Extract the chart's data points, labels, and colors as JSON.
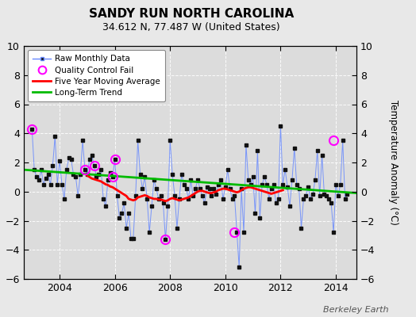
{
  "title": "SANDY RUN NORTH CAROLINA",
  "subtitle": "34.612 N, 77.487 W (United States)",
  "ylabel": "Temperature Anomaly (°C)",
  "watermark": "Berkeley Earth",
  "xlim": [
    2002.7,
    2014.75
  ],
  "ylim": [
    -6,
    10
  ],
  "yticks": [
    -6,
    -4,
    -2,
    0,
    2,
    4,
    6,
    8,
    10
  ],
  "xticks": [
    2004,
    2006,
    2008,
    2010,
    2012,
    2014
  ],
  "bg_color": "#e8e8e8",
  "plot_bg_color": "#dcdcdc",
  "grid_color": "#ffffff",
  "raw_line_color": "#6688ff",
  "raw_marker_color": "#111111",
  "moving_avg_color": "#ff0000",
  "trend_color": "#00bb00",
  "qc_fail_color": "#ff00ff",
  "raw_x": [
    2003.0,
    2003.083,
    2003.167,
    2003.25,
    2003.333,
    2003.417,
    2003.5,
    2003.583,
    2003.667,
    2003.75,
    2003.833,
    2003.917,
    2004.0,
    2004.083,
    2004.167,
    2004.25,
    2004.333,
    2004.417,
    2004.5,
    2004.583,
    2004.667,
    2004.75,
    2004.833,
    2004.917,
    2005.0,
    2005.083,
    2005.167,
    2005.25,
    2005.333,
    2005.417,
    2005.5,
    2005.583,
    2005.667,
    2005.75,
    2005.833,
    2005.917,
    2006.0,
    2006.083,
    2006.167,
    2006.25,
    2006.333,
    2006.417,
    2006.5,
    2006.583,
    2006.667,
    2006.75,
    2006.833,
    2006.917,
    2007.0,
    2007.083,
    2007.167,
    2007.25,
    2007.333,
    2007.417,
    2007.5,
    2007.583,
    2007.667,
    2007.75,
    2007.833,
    2007.917,
    2008.0,
    2008.083,
    2008.167,
    2008.25,
    2008.333,
    2008.417,
    2008.5,
    2008.583,
    2008.667,
    2008.75,
    2008.833,
    2008.917,
    2009.0,
    2009.083,
    2009.167,
    2009.25,
    2009.333,
    2009.417,
    2009.5,
    2009.583,
    2009.667,
    2009.75,
    2009.833,
    2009.917,
    2010.0,
    2010.083,
    2010.167,
    2010.25,
    2010.333,
    2010.417,
    2010.5,
    2010.583,
    2010.667,
    2010.75,
    2010.833,
    2010.917,
    2011.0,
    2011.083,
    2011.167,
    2011.25,
    2011.333,
    2011.417,
    2011.5,
    2011.583,
    2011.667,
    2011.75,
    2011.833,
    2011.917,
    2012.0,
    2012.083,
    2012.167,
    2012.25,
    2012.333,
    2012.417,
    2012.5,
    2012.583,
    2012.667,
    2012.75,
    2012.833,
    2012.917,
    2013.0,
    2013.083,
    2013.167,
    2013.25,
    2013.333,
    2013.417,
    2013.5,
    2013.583,
    2013.667,
    2013.75,
    2013.833,
    2013.917,
    2014.0,
    2014.083,
    2014.167,
    2014.25,
    2014.333,
    2014.417
  ],
  "raw_y": [
    4.3,
    1.5,
    1.0,
    0.8,
    1.5,
    0.5,
    0.9,
    1.2,
    0.5,
    1.8,
    3.8,
    0.5,
    2.1,
    0.5,
    -0.5,
    1.5,
    2.3,
    2.2,
    1.2,
    1.0,
    -0.3,
    1.2,
    3.5,
    1.5,
    1.2,
    2.2,
    2.5,
    1.8,
    1.0,
    1.2,
    1.5,
    -0.5,
    -1.0,
    0.8,
    1.3,
    1.0,
    2.2,
    -0.3,
    -1.8,
    -1.5,
    -0.8,
    -2.5,
    -1.5,
    -3.2,
    -3.2,
    -0.3,
    3.5,
    1.2,
    0.2,
    1.0,
    -0.5,
    -2.8,
    -1.0,
    0.8,
    0.2,
    -0.5,
    -0.3,
    -0.8,
    -3.3,
    -1.0,
    3.5,
    1.2,
    -0.3,
    -2.5,
    -0.5,
    1.2,
    0.5,
    0.2,
    -0.5,
    0.8,
    -0.3,
    0.2,
    0.8,
    0.2,
    -0.3,
    -0.8,
    0.3,
    0.2,
    -0.3,
    0.2,
    -0.2,
    0.5,
    0.8,
    -0.5,
    0.3,
    1.5,
    0.2,
    -0.5,
    -0.3,
    -2.8,
    -5.2,
    0.2,
    -2.8,
    3.2,
    0.8,
    0.5,
    1.0,
    -1.5,
    2.8,
    -1.8,
    0.5,
    1.0,
    0.5,
    -0.5,
    0.2,
    0.5,
    -0.8,
    -0.5,
    4.5,
    0.5,
    1.5,
    0.3,
    -1.0,
    0.8,
    3.0,
    0.5,
    0.2,
    -2.5,
    -0.5,
    -0.3,
    0.3,
    -0.5,
    -0.2,
    0.8,
    2.8,
    -0.3,
    2.5,
    -0.2,
    -0.3,
    -0.5,
    -0.8,
    -2.8,
    0.5,
    -0.3,
    0.5,
    3.5,
    -0.5,
    -0.2
  ],
  "qc_fail_x": [
    2003.0,
    2004.917,
    2005.25,
    2005.917,
    2006.0,
    2007.833,
    2010.333,
    2013.917
  ],
  "qc_fail_y": [
    4.3,
    1.5,
    1.8,
    1.0,
    2.2,
    -3.3,
    -2.8,
    3.5
  ],
  "moving_avg_x": [
    2005.0,
    2005.083,
    2005.167,
    2005.25,
    2005.333,
    2005.417,
    2005.5,
    2005.583,
    2005.667,
    2005.75,
    2005.833,
    2005.917,
    2006.0,
    2006.083,
    2006.167,
    2006.25,
    2006.333,
    2006.417,
    2006.5,
    2006.583,
    2006.667,
    2006.75,
    2006.833,
    2006.917,
    2007.0,
    2007.083,
    2007.167,
    2007.25,
    2007.333,
    2007.417,
    2007.5,
    2007.583,
    2007.667,
    2007.75,
    2007.833,
    2007.917,
    2008.0,
    2008.083,
    2008.167,
    2008.25,
    2008.333,
    2008.417,
    2008.5,
    2008.583,
    2008.667,
    2008.75,
    2008.833,
    2008.917,
    2009.0,
    2009.083,
    2009.167,
    2009.25,
    2009.333,
    2009.417,
    2009.5,
    2009.583,
    2009.667,
    2009.75,
    2009.833,
    2009.917,
    2010.0,
    2010.083,
    2010.167,
    2010.25,
    2010.333,
    2010.417,
    2010.5,
    2010.583,
    2010.667,
    2010.75,
    2010.833,
    2010.917,
    2011.0,
    2011.083,
    2011.167,
    2011.25,
    2011.333,
    2011.417,
    2011.5,
    2011.583,
    2011.667,
    2011.75,
    2011.833,
    2011.917,
    2012.0,
    2012.083
  ],
  "moving_avg_y": [
    1.1,
    1.0,
    0.9,
    0.85,
    0.8,
    0.75,
    0.7,
    0.6,
    0.5,
    0.45,
    0.35,
    0.3,
    0.2,
    0.1,
    0.0,
    -0.1,
    -0.2,
    -0.3,
    -0.5,
    -0.55,
    -0.6,
    -0.55,
    -0.4,
    -0.35,
    -0.3,
    -0.25,
    -0.3,
    -0.4,
    -0.45,
    -0.5,
    -0.5,
    -0.55,
    -0.55,
    -0.6,
    -0.65,
    -0.6,
    -0.5,
    -0.45,
    -0.5,
    -0.55,
    -0.6,
    -0.55,
    -0.5,
    -0.45,
    -0.4,
    -0.3,
    -0.2,
    -0.1,
    0.0,
    0.05,
    0.05,
    0.0,
    -0.05,
    -0.1,
    -0.1,
    -0.05,
    0.0,
    0.1,
    0.15,
    0.2,
    0.2,
    0.15,
    0.1,
    0.05,
    0.0,
    -0.05,
    0.0,
    0.1,
    0.2,
    0.25,
    0.3,
    0.3,
    0.25,
    0.2,
    0.15,
    0.1,
    0.05,
    0.0,
    -0.05,
    -0.1,
    -0.15,
    -0.1,
    -0.05,
    0.0,
    0.05,
    0.1
  ],
  "trend_x": [
    2002.7,
    2014.75
  ],
  "trend_y": [
    1.5,
    -0.1
  ]
}
